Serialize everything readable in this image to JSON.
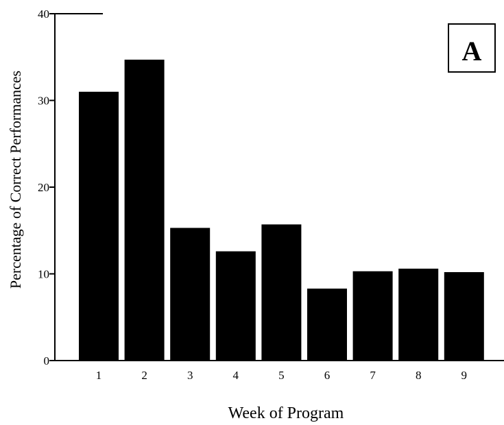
{
  "chart_data": {
    "type": "bar",
    "categories": [
      "1",
      "2",
      "3",
      "4",
      "5",
      "6",
      "7",
      "8",
      "9"
    ],
    "values": [
      31,
      34.7,
      15.3,
      12.6,
      15.7,
      8.3,
      10.3,
      10.6,
      10.2
    ],
    "xlabel": "Week of Program",
    "ylabel": "Percentage of Correct Performances",
    "ylim": [
      0,
      40
    ],
    "yticks": [
      "0",
      "10",
      "20",
      "30",
      "40"
    ],
    "grid": false,
    "panel_label": "A",
    "bar_color": "#000000"
  }
}
